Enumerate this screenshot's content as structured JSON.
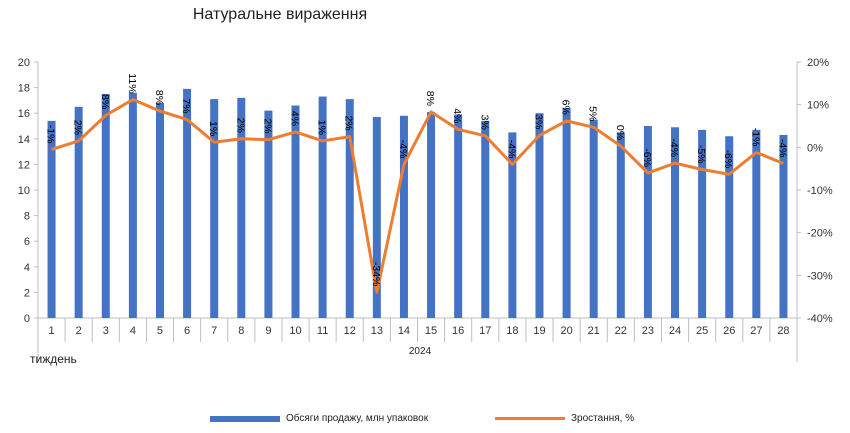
{
  "chart_data": {
    "type": "bar",
    "title": "Натуральне вираження",
    "xlabel": "тиждень",
    "x_group_label": "2024",
    "categories": [
      "1",
      "2",
      "3",
      "4",
      "5",
      "6",
      "7",
      "8",
      "9",
      "10",
      "11",
      "12",
      "13",
      "14",
      "15",
      "16",
      "17",
      "18",
      "19",
      "20",
      "21",
      "22",
      "23",
      "24",
      "25",
      "26",
      "27",
      "28"
    ],
    "series": [
      {
        "name": "Обсяги продажу, млн упаковок",
        "type": "bar",
        "axis": "left",
        "color": "#4472C4",
        "values": [
          15.4,
          16.5,
          17.5,
          17.6,
          16.8,
          17.9,
          17.1,
          17.2,
          16.2,
          16.6,
          17.3,
          17.1,
          15.7,
          15.8,
          16.1,
          15.9,
          15.4,
          14.5,
          16.0,
          16.4,
          15.5,
          14.5,
          15.0,
          14.9,
          14.7,
          14.2,
          14.7,
          14.3
        ]
      },
      {
        "name": "Зростання, %",
        "type": "line",
        "axis": "right",
        "color": "#ED7D31",
        "values": [
          -0.5,
          1.5,
          7.5,
          11.2,
          8.5,
          6.5,
          1.2,
          2.0,
          1.8,
          3.6,
          1.5,
          2.5,
          -34,
          -4,
          8.3,
          4.2,
          2.7,
          -4,
          2.8,
          6.2,
          4.7,
          0.3,
          -6.0,
          -3.7,
          -5.2,
          -6.3,
          -1.2,
          -3.8
        ],
        "labels": [
          "-1%",
          "2%",
          "8%",
          "11%",
          "8%",
          "7%",
          "1%",
          "2%",
          "2%",
          "4%",
          "1%",
          "2%",
          "-34%",
          "-4%",
          "8%",
          "4%",
          "3%",
          "-4%",
          "3%",
          "6%",
          "5%",
          "0%",
          "-6%",
          "-4%",
          "-5%",
          "-6%",
          "-1%",
          "-4%"
        ]
      }
    ],
    "y_left": {
      "min": 0,
      "max": 20,
      "step": 2,
      "ticks": [
        "0",
        "2",
        "4",
        "6",
        "8",
        "10",
        "12",
        "14",
        "16",
        "18",
        "20"
      ]
    },
    "y_right": {
      "min": -40,
      "max": 20,
      "step": 10,
      "ticks": [
        "-40%",
        "-30%",
        "-20%",
        "-10%",
        "0%",
        "10%",
        "20%"
      ]
    },
    "grid": false,
    "legend_position": "bottom"
  }
}
